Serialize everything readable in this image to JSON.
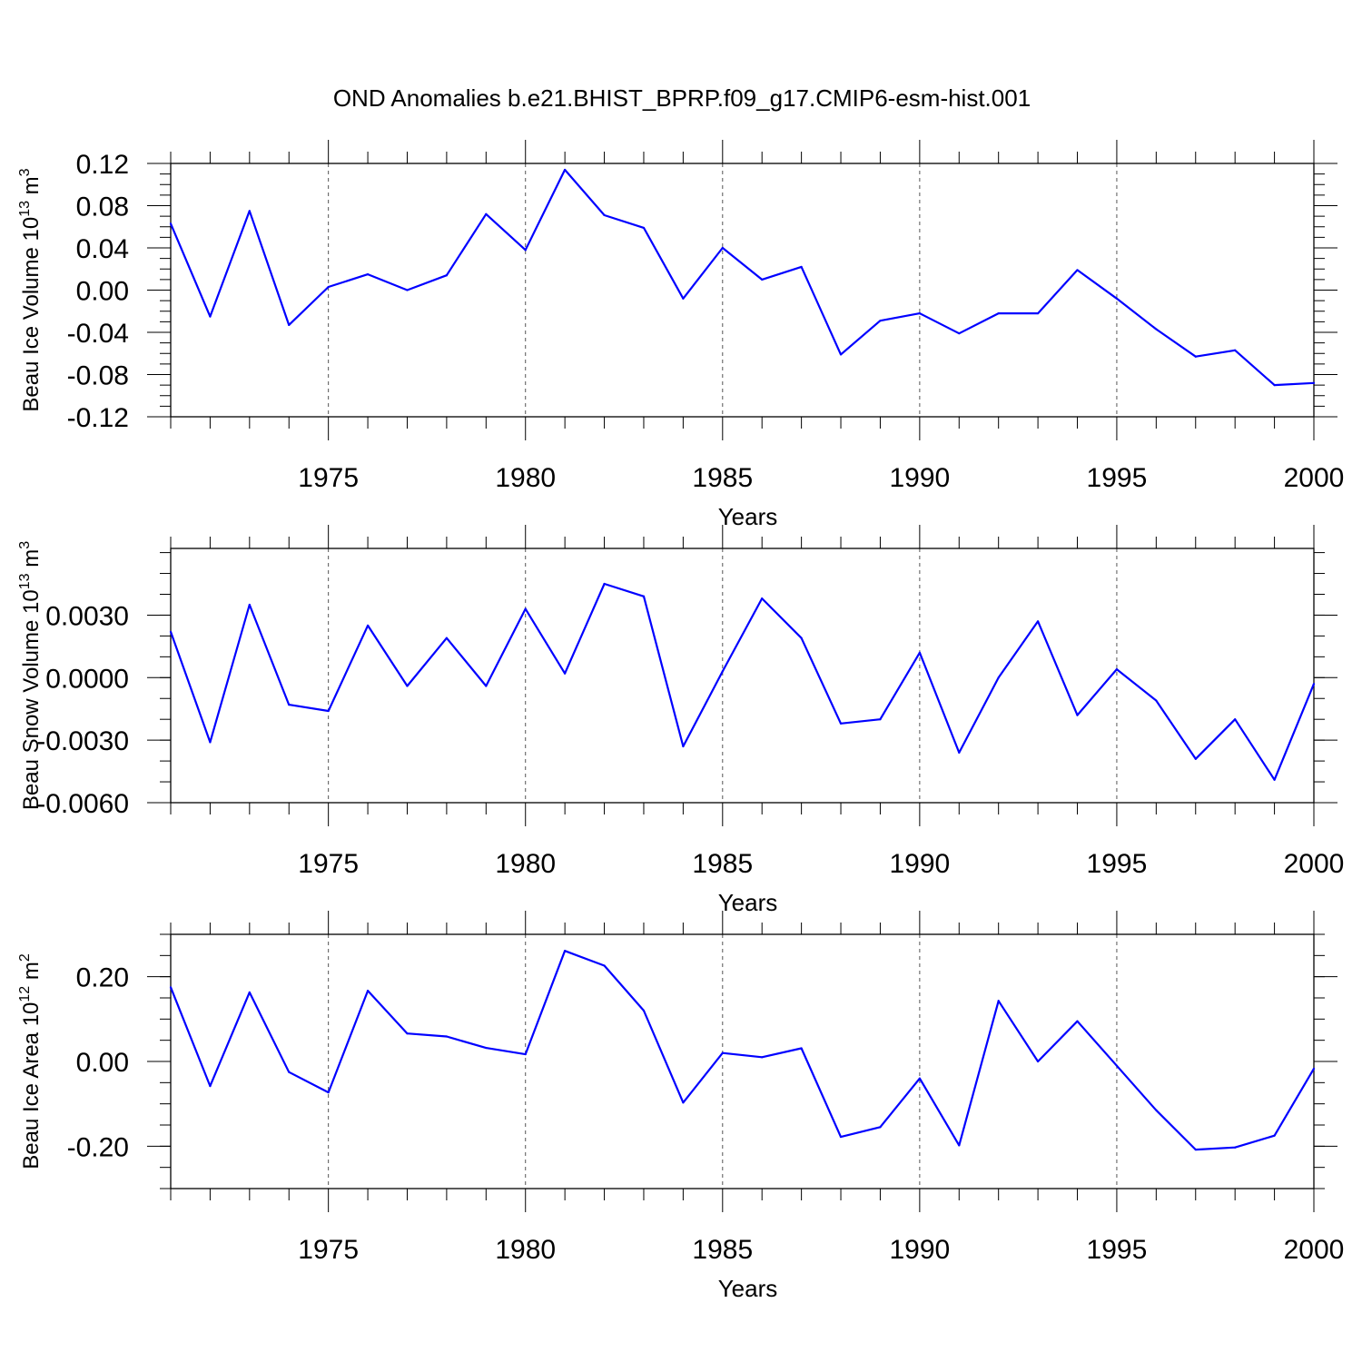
{
  "figure_title": "OND Anomalies b.e21.BHIST_BPRP.f09_g17.CMIP6-esm-hist.001",
  "chart_data": [
    {
      "type": "line",
      "title": "OND Anomalies b.e21.BHIST_BPRP.f09_g17.CMIP6-esm-hist.001",
      "xlabel": "Years",
      "ylabel_text": "Beau Ice Volume 10",
      "ylabel_exp": "13",
      "ylabel_unit": " m",
      "ylabel_unit_exp": "3",
      "xlim": [
        1971,
        2000
      ],
      "ylim": [
        -0.12,
        0.12
      ],
      "x_ticks": [
        1975,
        1980,
        1985,
        1990,
        1995,
        2000
      ],
      "x_tick_labels": [
        "1975",
        "1980",
        "1985",
        "1990",
        "1995",
        "2000"
      ],
      "y_ticks": [
        -0.12,
        -0.08,
        -0.04,
        0.0,
        0.04,
        0.08,
        0.12
      ],
      "y_tick_labels": [
        "-0.12",
        "-0.08",
        "-0.04",
        "0.00",
        "0.04",
        "0.08",
        "0.12"
      ],
      "y_minor_step": 0.01,
      "grid_x": [
        1975,
        1980,
        1985,
        1990,
        1995
      ],
      "line_color": "#0000ff",
      "series": [
        {
          "name": "Beau Ice Volume",
          "x": [
            1971,
            1972,
            1973,
            1974,
            1975,
            1976,
            1977,
            1978,
            1979,
            1980,
            1981,
            1982,
            1983,
            1984,
            1985,
            1986,
            1987,
            1988,
            1989,
            1990,
            1991,
            1992,
            1993,
            1994,
            1995,
            1996,
            1997,
            1998,
            1999,
            2000
          ],
          "values": [
            0.063,
            -0.025,
            0.075,
            -0.033,
            0.003,
            0.015,
            0.0,
            0.014,
            0.072,
            0.038,
            0.114,
            0.071,
            0.059,
            -0.008,
            0.04,
            0.01,
            0.022,
            -0.061,
            -0.029,
            -0.022,
            -0.041,
            -0.022,
            -0.022,
            0.019,
            -0.008,
            -0.037,
            -0.063,
            -0.057,
            -0.09,
            -0.088
          ]
        }
      ]
    },
    {
      "type": "line",
      "xlabel": "Years",
      "ylabel_text": "Beau Snow Volume 10",
      "ylabel_exp": "13",
      "ylabel_unit": " m",
      "ylabel_unit_exp": "3",
      "xlim": [
        1971,
        2000
      ],
      "ylim": [
        -0.006,
        0.0062
      ],
      "x_ticks": [
        1975,
        1980,
        1985,
        1990,
        1995,
        2000
      ],
      "x_tick_labels": [
        "1975",
        "1980",
        "1985",
        "1990",
        "1995",
        "2000"
      ],
      "y_ticks": [
        -0.006,
        -0.003,
        0.0,
        0.003
      ],
      "y_tick_labels": [
        "-0.0060",
        "-0.0030",
        "0.0000",
        "0.0030"
      ],
      "y_minor_step": 0.001,
      "grid_x": [
        1975,
        1980,
        1985,
        1990,
        1995
      ],
      "line_color": "#0000ff",
      "series": [
        {
          "name": "Beau Snow Volume",
          "x": [
            1971,
            1972,
            1973,
            1974,
            1975,
            1976,
            1977,
            1978,
            1979,
            1980,
            1981,
            1982,
            1983,
            1984,
            1985,
            1986,
            1987,
            1988,
            1989,
            1990,
            1991,
            1992,
            1993,
            1994,
            1995,
            1996,
            1997,
            1998,
            1999,
            2000
          ],
          "values": [
            0.0022,
            -0.0031,
            0.0035,
            -0.0013,
            -0.0016,
            0.0025,
            -0.0004,
            0.0019,
            -0.0004,
            0.0033,
            0.0002,
            0.0045,
            0.0039,
            -0.0033,
            0.0003,
            0.0038,
            0.0019,
            -0.0022,
            -0.002,
            0.0012,
            -0.0036,
            0.0,
            0.0027,
            -0.0018,
            0.0004,
            -0.0011,
            -0.0039,
            -0.002,
            -0.0049,
            -0.0003
          ]
        }
      ]
    },
    {
      "type": "line",
      "xlabel": "Years",
      "ylabel_text": "Beau Ice Area 10",
      "ylabel_exp": "12",
      "ylabel_unit": " m",
      "ylabel_unit_exp": "2",
      "xlim": [
        1971,
        2000
      ],
      "ylim": [
        -0.3,
        0.3
      ],
      "x_ticks": [
        1975,
        1980,
        1985,
        1990,
        1995,
        2000
      ],
      "x_tick_labels": [
        "1975",
        "1980",
        "1985",
        "1990",
        "1995",
        "2000"
      ],
      "y_ticks": [
        -0.2,
        0.0,
        0.2
      ],
      "y_tick_labels": [
        "-0.20",
        "0.00",
        "0.20"
      ],
      "y_minor_step": 0.05,
      "grid_x": [
        1975,
        1980,
        1985,
        1990,
        1995
      ],
      "line_color": "#0000ff",
      "series": [
        {
          "name": "Beau Ice Area",
          "x": [
            1971,
            1972,
            1973,
            1974,
            1975,
            1976,
            1977,
            1978,
            1979,
            1980,
            1981,
            1982,
            1983,
            1984,
            1985,
            1986,
            1987,
            1988,
            1989,
            1990,
            1991,
            1992,
            1993,
            1994,
            1995,
            1996,
            1997,
            1998,
            1999,
            2000
          ],
          "values": [
            0.175,
            -0.058,
            0.163,
            -0.025,
            -0.073,
            0.167,
            0.066,
            0.059,
            0.032,
            0.017,
            0.261,
            0.226,
            0.12,
            -0.097,
            0.02,
            0.01,
            0.031,
            -0.178,
            -0.155,
            -0.04,
            -0.198,
            0.143,
            0.0,
            0.095,
            -0.01,
            -0.115,
            -0.208,
            -0.203,
            -0.175,
            -0.017
          ]
        }
      ]
    }
  ]
}
